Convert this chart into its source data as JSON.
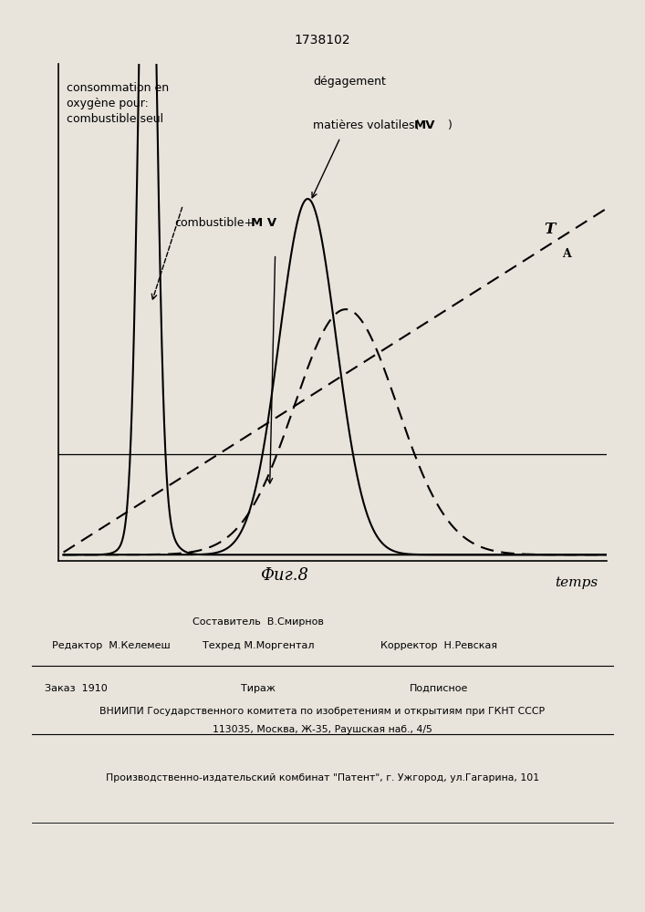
{
  "patent_number": "1738102",
  "fig_label": "Фиг.8",
  "xlabel": "temps",
  "background_color": "#e8e4dc",
  "text_color": "#000000",
  "label_combustible_seul": "consommation en\noxygène pour:\ncombustible seul",
  "label_combustible_mv_pre": "combustible+",
  "label_combustible_mv_bold": "M V",
  "label_degagement_line1": "dégagement",
  "label_degagement_line2": "matières volatiles(",
  "label_degagement_bold": "MV",
  "label_degagement_close": ")",
  "label_ta_main": "T",
  "label_ta_sub": "A",
  "footer_line1": "Составитель  В.Смирнов",
  "footer_editor": "Редактор  М.Келемеш",
  "footer_techred": "Техред М.Моргентал",
  "footer_korrektor": "Корректор  Н.Ревская",
  "footer_zakaz": "Заказ  1910",
  "footer_tirazh": "Тираж",
  "footer_podpisnoe": "Подписное",
  "footer_vniiipi": "ВНИИПИ Государственного комитета по изобретениям и открытиям при ГКНТ СССР",
  "footer_address": "113035, Москва, Ж-35, Раушская наб., 4/5",
  "footer_patent": "Производственно-издательский комбинат \"Патент\", г. Ужгород, ул.Гагарина, 101"
}
